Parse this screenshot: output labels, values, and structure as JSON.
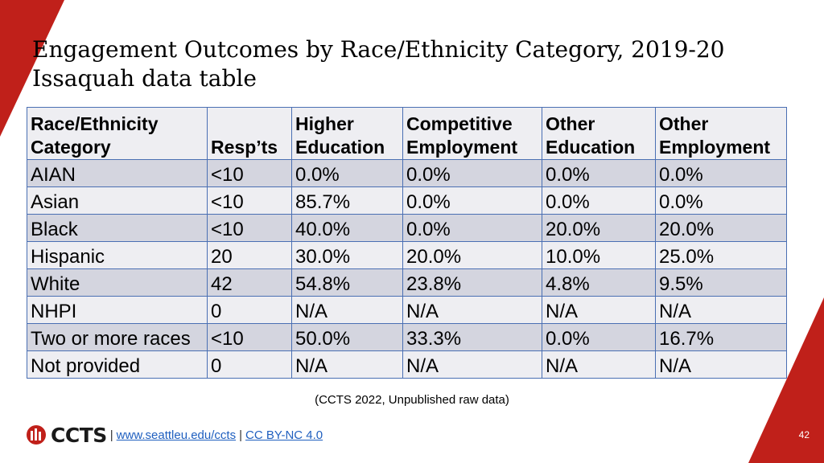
{
  "title": {
    "line1": "Engagement Outcomes by Race/Ethnicity Category, 2019-20",
    "line2": "Issaquah data table"
  },
  "table": {
    "headers": [
      [
        "Race/Ethnicity",
        "Category"
      ],
      [
        "",
        "Resp’ts"
      ],
      [
        "Higher",
        "Education"
      ],
      [
        "Competitive",
        "Employment"
      ],
      [
        "Other",
        "Education"
      ],
      [
        "Other",
        "Employment"
      ]
    ],
    "rows": [
      [
        "AIAN",
        "<10",
        "0.0%",
        "0.0%",
        "0.0%",
        "0.0%"
      ],
      [
        "Asian",
        "<10",
        "85.7%",
        "0.0%",
        "0.0%",
        "0.0%"
      ],
      [
        "Black",
        "<10",
        "40.0%",
        "0.0%",
        "20.0%",
        "20.0%"
      ],
      [
        "Hispanic",
        "20",
        "30.0%",
        "20.0%",
        "10.0%",
        "25.0%"
      ],
      [
        "White",
        "42",
        "54.8%",
        "23.8%",
        "4.8%",
        "9.5%"
      ],
      [
        "NHPI",
        "0",
        "N/A",
        "N/A",
        "N/A",
        "N/A"
      ],
      [
        "Two or more races",
        "<10",
        "50.0%",
        "33.3%",
        "0.0%",
        "16.7%"
      ],
      [
        "Not provided",
        "0",
        "N/A",
        "N/A",
        "N/A",
        "N/A"
      ]
    ]
  },
  "citation": "(CCTS 2022, Unpublished raw data)",
  "footer": {
    "logo_text": "CCTS",
    "separator": "|",
    "link1": "www.seattleu.edu/ccts",
    "link2": "CC BY-NC 4.0"
  },
  "page_number": "42",
  "colors": {
    "accent_red": "#c0201a",
    "table_border": "#4a6fb3",
    "row_dark": "#d4d5df",
    "row_light": "#eeeef2",
    "link": "#1f5fbf"
  }
}
